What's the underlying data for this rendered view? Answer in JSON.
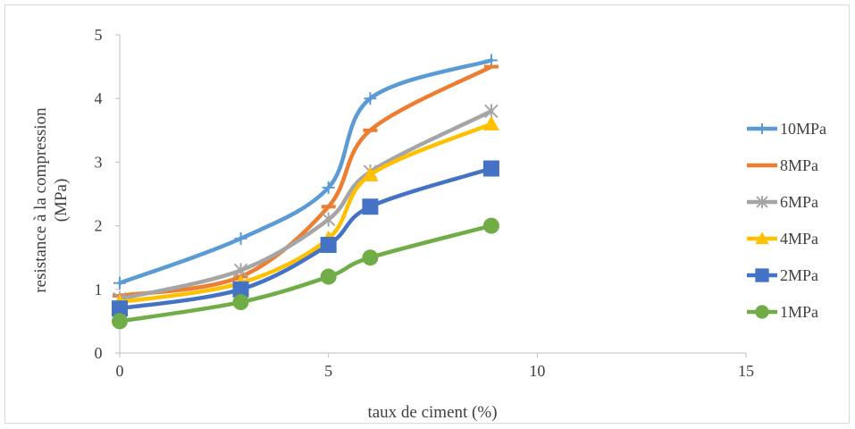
{
  "chart_data": {
    "type": "scatter",
    "title": "",
    "xlabel": "taux de ciment (%)",
    "ylabel": [
      "resistance à la compression",
      "(MPa)"
    ],
    "xlim": [
      0,
      15
    ],
    "ylim": [
      0,
      5
    ],
    "xticks": [
      0,
      5,
      10,
      15
    ],
    "yticks": [
      0,
      1,
      2,
      3,
      4,
      5
    ],
    "x": [
      0,
      2.9,
      5,
      6,
      8.9
    ],
    "grid": false,
    "legend_position": "right",
    "series": [
      {
        "name": "10MPa",
        "color": "#5b9bd5",
        "marker": "plus",
        "values": [
          1.1,
          1.8,
          2.6,
          4.0,
          4.6
        ]
      },
      {
        "name": "8MPa",
        "color": "#ed7d31",
        "marker": "dash",
        "values": [
          0.9,
          1.2,
          2.3,
          3.5,
          4.5
        ]
      },
      {
        "name": "6MPa",
        "color": "#a5a5a5",
        "marker": "star",
        "values": [
          0.85,
          1.3,
          2.1,
          2.85,
          3.8
        ]
      },
      {
        "name": "4MPa",
        "color": "#ffc000",
        "marker": "triangle",
        "values": [
          0.8,
          1.1,
          1.8,
          2.8,
          3.6
        ]
      },
      {
        "name": "2MPa",
        "color": "#4472c4",
        "marker": "square",
        "values": [
          0.7,
          1.0,
          1.7,
          2.3,
          2.9
        ]
      },
      {
        "name": "1MPa",
        "color": "#70ad47",
        "marker": "circle",
        "values": [
          0.5,
          0.8,
          1.2,
          1.5,
          2.0
        ]
      }
    ]
  }
}
